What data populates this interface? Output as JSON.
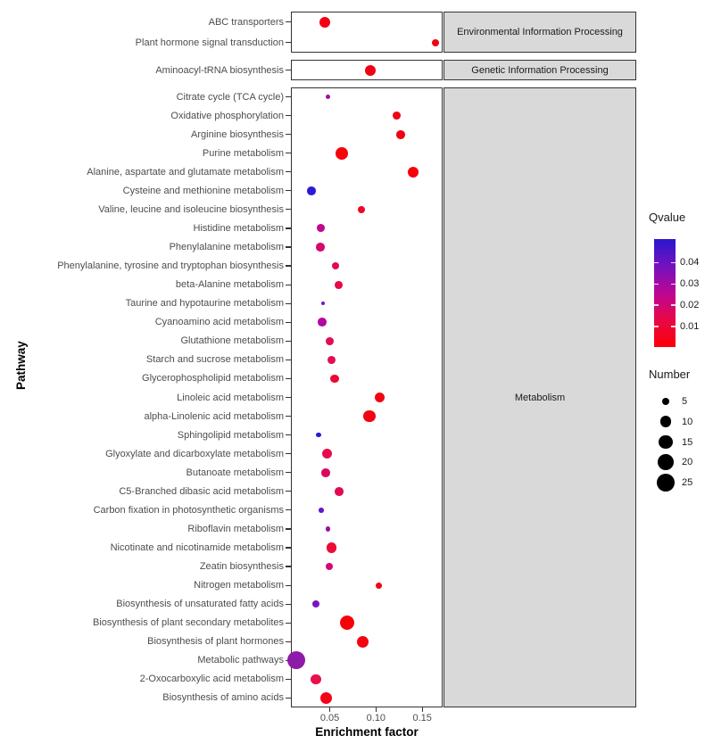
{
  "chart_data": {
    "type": "scatter",
    "title": "",
    "xlabel": "Enrichment factor",
    "ylabel": "Pathway",
    "xlim": [
      0.008,
      0.172
    ],
    "grid": false,
    "x_ticks": [
      {
        "value": 0.05,
        "label": "0.05"
      },
      {
        "value": 0.1,
        "label": "0.10"
      },
      {
        "value": 0.15,
        "label": "0.15"
      }
    ],
    "facets": [
      {
        "label": "Environmental Information Processing",
        "rows": [
          {
            "pathway": "ABC transporters",
            "enrichment_factor": 0.045,
            "number": 9,
            "qvalue": 0.004,
            "color": "#F20014"
          },
          {
            "pathway": "Plant hormone signal transduction",
            "enrichment_factor": 0.164,
            "number": 4,
            "qvalue": 0.004,
            "color": "#F20014"
          }
        ]
      },
      {
        "label": "Genetic Information Processing",
        "rows": [
          {
            "pathway": "Aminoacyl-tRNA biosynthesis",
            "enrichment_factor": 0.094,
            "number": 9,
            "qvalue": 0.004,
            "color": "#F20014"
          }
        ]
      },
      {
        "label": "Metabolism",
        "rows": [
          {
            "pathway": "Citrate cycle (TCA cycle)",
            "enrichment_factor": 0.048,
            "number": 2,
            "qvalue": 0.026,
            "color": "#A90BA5"
          },
          {
            "pathway": "Oxidative phosphorylation",
            "enrichment_factor": 0.122,
            "number": 5,
            "qvalue": 0.005,
            "color": "#F20014"
          },
          {
            "pathway": "Arginine biosynthesis",
            "enrichment_factor": 0.127,
            "number": 6,
            "qvalue": 0.005,
            "color": "#F20014"
          },
          {
            "pathway": "Purine metabolism",
            "enrichment_factor": 0.063,
            "number": 12,
            "qvalue": 0.003,
            "color": "#F60208"
          },
          {
            "pathway": "Alanine, aspartate and glutamate metabolism",
            "enrichment_factor": 0.14,
            "number": 9,
            "qvalue": 0.003,
            "color": "#F60208"
          },
          {
            "pathway": "Cysteine and methionine metabolism",
            "enrichment_factor": 0.03,
            "number": 6,
            "qvalue": 0.048,
            "color": "#2A1BD6"
          },
          {
            "pathway": "Valine, leucine and isoleucine biosynthesis",
            "enrichment_factor": 0.084,
            "number": 4,
            "qvalue": 0.008,
            "color": "#EE0626"
          },
          {
            "pathway": "Histidine metabolism",
            "enrichment_factor": 0.04,
            "number": 5,
            "qvalue": 0.021,
            "color": "#C4078E"
          },
          {
            "pathway": "Phenylalanine metabolism",
            "enrichment_factor": 0.04,
            "number": 6,
            "qvalue": 0.017,
            "color": "#D50871"
          },
          {
            "pathway": "Phenylalanine, tyrosine and tryptophan biosynthesis",
            "enrichment_factor": 0.056,
            "number": 4,
            "qvalue": 0.013,
            "color": "#E30953"
          },
          {
            "pathway": "beta-Alanine metabolism",
            "enrichment_factor": 0.06,
            "number": 5,
            "qvalue": 0.012,
            "color": "#E60A45"
          },
          {
            "pathway": "Taurine and hypotaurine metabolism",
            "enrichment_factor": 0.043,
            "number": 1,
            "qvalue": 0.033,
            "color": "#7713BC"
          },
          {
            "pathway": "Cyanoamino acid metabolism",
            "enrichment_factor": 0.042,
            "number": 6,
            "qvalue": 0.024,
            "color": "#B108A0"
          },
          {
            "pathway": "Glutathione metabolism",
            "enrichment_factor": 0.05,
            "number": 5,
            "qvalue": 0.013,
            "color": "#E20C56"
          },
          {
            "pathway": "Starch and sucrose metabolism",
            "enrichment_factor": 0.052,
            "number": 5,
            "qvalue": 0.013,
            "color": "#E20C56"
          },
          {
            "pathway": "Glycerophospholipid metabolism",
            "enrichment_factor": 0.055,
            "number": 6,
            "qvalue": 0.009,
            "color": "#ED0836"
          },
          {
            "pathway": "Linoleic acid metabolism",
            "enrichment_factor": 0.104,
            "number": 8,
            "qvalue": 0.004,
            "color": "#F50313"
          },
          {
            "pathway": "alpha-Linolenic acid metabolism",
            "enrichment_factor": 0.093,
            "number": 11,
            "qvalue": 0.004,
            "color": "#F50313"
          },
          {
            "pathway": "Sphingolipid metabolism",
            "enrichment_factor": 0.038,
            "number": 2,
            "qvalue": 0.048,
            "color": "#2A1BD6"
          },
          {
            "pathway": "Glyoxylate and dicarboxylate metabolism",
            "enrichment_factor": 0.047,
            "number": 8,
            "qvalue": 0.012,
            "color": "#E60D4E"
          },
          {
            "pathway": "Butanoate metabolism",
            "enrichment_factor": 0.046,
            "number": 6,
            "qvalue": 0.016,
            "color": "#DB0760"
          },
          {
            "pathway": "C5-Branched dibasic acid metabolism",
            "enrichment_factor": 0.06,
            "number": 6,
            "qvalue": 0.013,
            "color": "#E30953"
          },
          {
            "pathway": "Carbon fixation in photosynthetic organisms",
            "enrichment_factor": 0.041,
            "number": 2,
            "qvalue": 0.037,
            "color": "#6316C9"
          },
          {
            "pathway": "Riboflavin metabolism",
            "enrichment_factor": 0.048,
            "number": 2,
            "qvalue": 0.029,
            "color": "#9B13A8"
          },
          {
            "pathway": "Nicotinate and nicotinamide metabolism",
            "enrichment_factor": 0.052,
            "number": 8,
            "qvalue": 0.008,
            "color": "#EE0B36"
          },
          {
            "pathway": "Zeatin biosynthesis",
            "enrichment_factor": 0.049,
            "number": 4,
            "qvalue": 0.018,
            "color": "#D4086E"
          },
          {
            "pathway": "Nitrogen metabolism",
            "enrichment_factor": 0.103,
            "number": 3,
            "qvalue": 0.004,
            "color": "#F50313"
          },
          {
            "pathway": "Biosynthesis of unsaturated fatty acids",
            "enrichment_factor": 0.035,
            "number": 4,
            "qvalue": 0.032,
            "color": "#7B16BE"
          },
          {
            "pathway": "Biosynthesis of plant secondary metabolites",
            "enrichment_factor": 0.069,
            "number": 16,
            "qvalue": 0.002,
            "color": "#F80009"
          },
          {
            "pathway": "Biosynthesis of plant hormones",
            "enrichment_factor": 0.086,
            "number": 11,
            "qvalue": 0.003,
            "color": "#F60210"
          },
          {
            "pathway": "Metabolic pathways",
            "enrichment_factor": 0.014,
            "number": 25,
            "qvalue": 0.03,
            "color": "#8E1BA8"
          },
          {
            "pathway": "2-Oxocarboxylic acid metabolism",
            "enrichment_factor": 0.035,
            "number": 8,
            "qvalue": 0.01,
            "color": "#E9114C"
          },
          {
            "pathway": "Biosynthesis of amino acids",
            "enrichment_factor": 0.046,
            "number": 11,
            "qvalue": 0.004,
            "color": "#F50318"
          }
        ]
      }
    ],
    "legend": {
      "qvalue": {
        "title": "Qvalue",
        "domain": [
          0.0003,
          0.051
        ],
        "ticks": [
          {
            "value": 0.04,
            "label": "0.04"
          },
          {
            "value": 0.03,
            "label": "0.03"
          },
          {
            "value": 0.02,
            "label": "0.02"
          },
          {
            "value": 0.01,
            "label": "0.01"
          }
        ],
        "gradient_top_to_bottom": [
          "#2A17CE",
          "#7412BE",
          "#BC0695",
          "#E80746",
          "#FB0005"
        ]
      },
      "number": {
        "title": "Number",
        "items": [
          {
            "value": 5,
            "label": "5"
          },
          {
            "value": 10,
            "label": "10"
          },
          {
            "value": 15,
            "label": "15"
          },
          {
            "value": 20,
            "label": "20"
          },
          {
            "value": 25,
            "label": "25"
          }
        ],
        "dot_color": "#000000"
      }
    }
  }
}
